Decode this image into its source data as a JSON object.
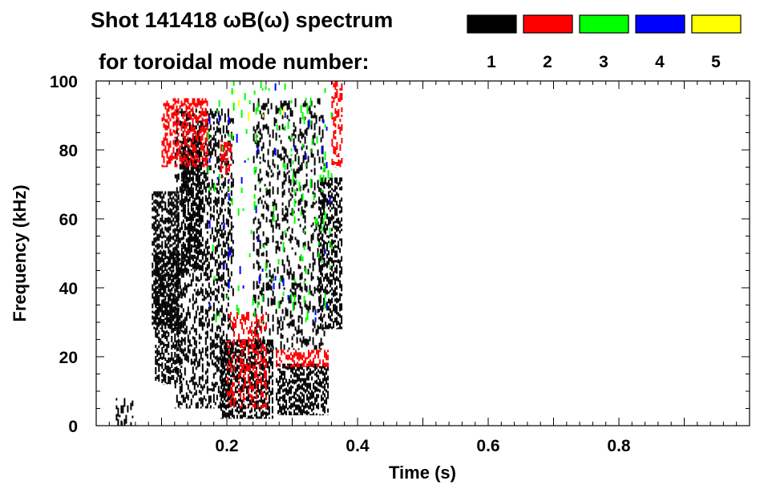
{
  "chart_data": {
    "type": "heatmap",
    "title_line1": "Shot 141418 ωB(ω) spectrum",
    "title_line2": "for toroidal mode number:",
    "xlabel": "Time (s)",
    "ylabel": "Frequency (kHz)",
    "xlim": [
      0.0,
      1.0
    ],
    "ylim": [
      0,
      100
    ],
    "x_ticks": [
      0.2,
      0.4,
      0.6,
      0.8
    ],
    "x_tick_labels": [
      "0.2",
      "0.4",
      "0.6",
      "0.8"
    ],
    "y_ticks": [
      0,
      20,
      40,
      60,
      80,
      100
    ],
    "y_tick_labels": [
      "0",
      "20",
      "40",
      "60",
      "80",
      "100"
    ],
    "legend": {
      "placement": "top-right",
      "entries": [
        {
          "mode": "1",
          "color": "#000000"
        },
        {
          "mode": "2",
          "color": "#ff0000"
        },
        {
          "mode": "3",
          "color": "#00ff00"
        },
        {
          "mode": "4",
          "color": "#0000ff"
        },
        {
          "mode": "5",
          "color": "#ffff00"
        }
      ]
    },
    "regions": [
      {
        "mode": "1",
        "t": [
          0.03,
          0.055
        ],
        "f": [
          0,
          8
        ],
        "density": 0.25
      },
      {
        "mode": "1",
        "t": [
          0.085,
          0.125
        ],
        "f": [
          28,
          68
        ],
        "density": 0.75
      },
      {
        "mode": "1",
        "t": [
          0.09,
          0.13
        ],
        "f": [
          12,
          50
        ],
        "density": 0.5
      },
      {
        "mode": "1",
        "t": [
          0.13,
          0.16
        ],
        "f": [
          45,
          84
        ],
        "density": 0.6
      },
      {
        "mode": "1",
        "t": [
          0.12,
          0.21
        ],
        "f": [
          5,
          92
        ],
        "density": 0.28
      },
      {
        "mode": "1",
        "t": [
          0.19,
          0.27
        ],
        "f": [
          2,
          25
        ],
        "density": 0.65
      },
      {
        "mode": "1",
        "t": [
          0.24,
          0.35
        ],
        "f": [
          22,
          95
        ],
        "density": 0.15
      },
      {
        "mode": "1",
        "t": [
          0.275,
          0.355
        ],
        "f": [
          3,
          18
        ],
        "density": 0.72
      },
      {
        "mode": "1",
        "t": [
          0.34,
          0.375
        ],
        "f": [
          28,
          72
        ],
        "density": 0.55
      },
      {
        "mode": "2",
        "t": [
          0.1,
          0.17
        ],
        "f": [
          75,
          95
        ],
        "density": 0.45
      },
      {
        "mode": "2",
        "t": [
          0.19,
          0.205
        ],
        "f": [
          72,
          83
        ],
        "density": 0.5
      },
      {
        "mode": "2",
        "t": [
          0.2,
          0.26
        ],
        "f": [
          5,
          33
        ],
        "density": 0.25
      },
      {
        "mode": "2",
        "t": [
          0.275,
          0.355
        ],
        "f": [
          17,
          22
        ],
        "density": 0.45
      },
      {
        "mode": "2",
        "t": [
          0.36,
          0.375
        ],
        "f": [
          75,
          100
        ],
        "density": 0.4
      },
      {
        "mode": "3",
        "t": [
          0.17,
          0.36
        ],
        "f": [
          30,
          100
        ],
        "density": 0.018
      },
      {
        "mode": "4",
        "t": [
          0.17,
          0.36
        ],
        "f": [
          30,
          100
        ],
        "density": 0.006
      },
      {
        "mode": "5",
        "t": [
          0.2,
          0.3
        ],
        "f": [
          88,
          98
        ],
        "density": 0.006
      }
    ]
  }
}
